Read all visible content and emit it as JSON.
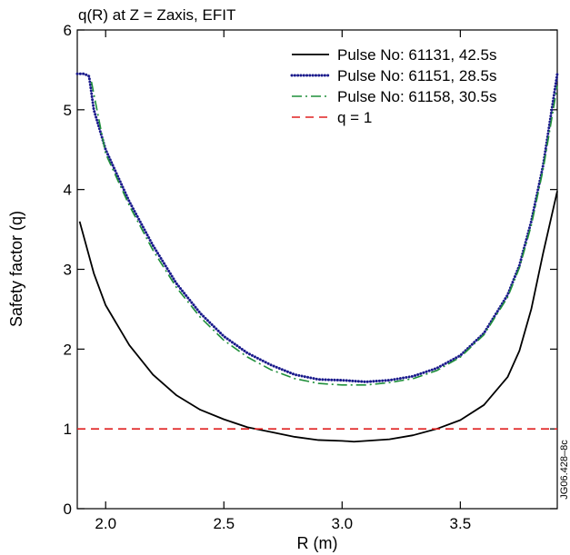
{
  "chart_data": {
    "type": "line",
    "title": "q(R) at Z = Zaxis, EFIT",
    "xlabel": "R (m)",
    "ylabel": "Safety factor (q)",
    "xlim": [
      1.88,
      3.91
    ],
    "ylim": [
      0,
      6
    ],
    "xticks": [
      2.0,
      2.5,
      3.0,
      3.5
    ],
    "xtick_labels": [
      "2.0",
      "2.5",
      "3.0",
      "3.5"
    ],
    "yticks": [
      0,
      1,
      2,
      3,
      4,
      5,
      6
    ],
    "ytick_labels": [
      "0",
      "1",
      "2",
      "3",
      "4",
      "5",
      "6"
    ],
    "grid": false,
    "legend_position": "top-right",
    "side_label": "JG06.428–8c",
    "series": [
      {
        "name": "Pulse No: 61131, 42.5s",
        "color": "#000000",
        "style": "solid",
        "x": [
          1.89,
          1.95,
          2.0,
          2.1,
          2.2,
          2.3,
          2.4,
          2.5,
          2.6,
          2.7,
          2.8,
          2.9,
          3.0,
          3.05,
          3.1,
          3.2,
          3.3,
          3.4,
          3.5,
          3.6,
          3.7,
          3.75,
          3.8,
          3.85,
          3.91
        ],
        "y": [
          3.6,
          2.95,
          2.55,
          2.05,
          1.68,
          1.42,
          1.24,
          1.12,
          1.02,
          0.96,
          0.9,
          0.86,
          0.85,
          0.84,
          0.85,
          0.87,
          0.92,
          1.0,
          1.11,
          1.3,
          1.65,
          1.98,
          2.5,
          3.2,
          3.98
        ]
      },
      {
        "name": "Pulse No: 61151, 28.5s",
        "color": "#1a1a8c",
        "style": "dotted",
        "x": [
          1.88,
          1.91,
          1.93,
          1.95,
          2.0,
          2.1,
          2.2,
          2.3,
          2.4,
          2.5,
          2.6,
          2.7,
          2.8,
          2.9,
          3.0,
          3.1,
          3.2,
          3.3,
          3.4,
          3.5,
          3.6,
          3.7,
          3.75,
          3.8,
          3.85,
          3.91
        ],
        "y": [
          5.45,
          5.45,
          5.42,
          5.0,
          4.5,
          3.85,
          3.3,
          2.82,
          2.45,
          2.16,
          1.95,
          1.8,
          1.68,
          1.62,
          1.61,
          1.59,
          1.61,
          1.66,
          1.76,
          1.92,
          2.2,
          2.68,
          3.05,
          3.6,
          4.3,
          5.45
        ]
      },
      {
        "name": "Pulse No: 61158, 30.5s",
        "color": "#1f8f3a",
        "style": "dashdot",
        "x": [
          1.94,
          2.0,
          2.1,
          2.2,
          2.3,
          2.4,
          2.5,
          2.6,
          2.7,
          2.8,
          2.9,
          3.0,
          3.1,
          3.2,
          3.3,
          3.4,
          3.5,
          3.6,
          3.7,
          3.75,
          3.8,
          3.85,
          3.91
        ],
        "y": [
          5.35,
          4.45,
          3.8,
          3.24,
          2.77,
          2.4,
          2.11,
          1.9,
          1.74,
          1.63,
          1.57,
          1.55,
          1.55,
          1.58,
          1.63,
          1.73,
          1.9,
          2.18,
          2.65,
          3.02,
          3.55,
          4.25,
          5.3
        ]
      },
      {
        "name": "q = 1",
        "color": "#e02020",
        "style": "dashed",
        "x": [
          1.88,
          3.91
        ],
        "y": [
          1,
          1
        ]
      }
    ]
  }
}
